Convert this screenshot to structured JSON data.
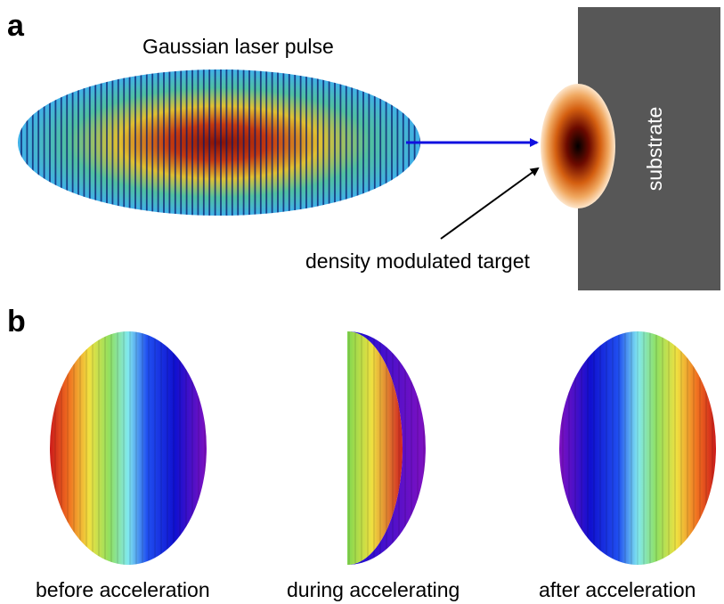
{
  "panel_a": {
    "letter": "a",
    "pulse_label": "Gaussian laser pulse",
    "target_label": "density modulated target",
    "substrate_label": "substrate"
  },
  "panel_b": {
    "letter": "b",
    "captions": [
      "before acceleration",
      "during accelerating",
      "after acceleration"
    ]
  },
  "colors": {
    "substrate": "#575757",
    "arrow_blue": "#1010e0",
    "arrow_black": "#000000"
  }
}
